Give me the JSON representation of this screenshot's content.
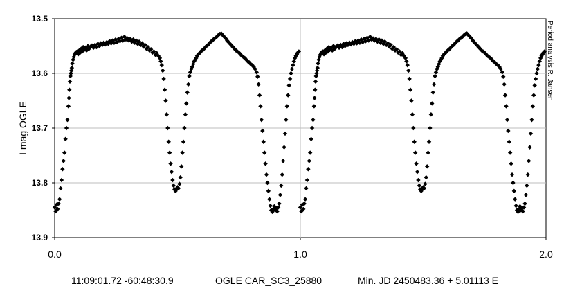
{
  "chart_data": {
    "type": "scatter",
    "ylabel": "I mag OGLE",
    "xlim": [
      0.0,
      2.0
    ],
    "ylim": [
      13.5,
      13.9
    ],
    "y_inverted": true,
    "x_ticks": [
      "0.0",
      "1.0",
      "2.0"
    ],
    "y_ticks": [
      "13.5",
      "13.6",
      "13.7",
      "13.8",
      "13.9"
    ],
    "grid": true,
    "marker": "diamond",
    "marker_color": "#000000",
    "side_label": "Period analysis  R. Jansen",
    "captions": {
      "coords": "11:09:01.72 -60:48:30.9",
      "star": "OGLE CAR_SC3_25880",
      "ephemeris": "Min. JD 2450483.36 + 5.01113 E"
    },
    "points": [
      [
        0.0,
        13.845
      ],
      [
        0.004,
        13.852
      ],
      [
        0.008,
        13.84
      ],
      [
        0.012,
        13.848
      ],
      [
        0.016,
        13.838
      ],
      [
        0.02,
        13.83
      ],
      [
        0.024,
        13.81
      ],
      [
        0.028,
        13.795
      ],
      [
        0.032,
        13.775
      ],
      [
        0.036,
        13.76
      ],
      [
        0.04,
        13.745
      ],
      [
        0.044,
        13.72
      ],
      [
        0.048,
        13.7
      ],
      [
        0.052,
        13.685
      ],
      [
        0.056,
        13.66
      ],
      [
        0.058,
        13.645
      ],
      [
        0.06,
        13.63
      ],
      [
        0.062,
        13.615
      ],
      [
        0.064,
        13.605
      ],
      [
        0.066,
        13.6
      ],
      [
        0.068,
        13.595
      ],
      [
        0.07,
        13.59
      ],
      [
        0.072,
        13.582
      ],
      [
        0.075,
        13.575
      ],
      [
        0.078,
        13.57
      ],
      [
        0.081,
        13.566
      ],
      [
        0.084,
        13.563
      ],
      [
        0.088,
        13.561
      ],
      [
        0.092,
        13.56
      ],
      [
        0.096,
        13.565
      ],
      [
        0.1,
        13.558
      ],
      [
        0.104,
        13.562
      ],
      [
        0.108,
        13.555
      ],
      [
        0.112,
        13.56
      ],
      [
        0.116,
        13.552
      ],
      [
        0.12,
        13.557
      ],
      [
        0.125,
        13.553
      ],
      [
        0.13,
        13.558
      ],
      [
        0.135,
        13.55
      ],
      [
        0.14,
        13.555
      ],
      [
        0.146,
        13.551
      ],
      [
        0.152,
        13.549
      ],
      [
        0.158,
        13.553
      ],
      [
        0.164,
        13.548
      ],
      [
        0.17,
        13.552
      ],
      [
        0.176,
        13.546
      ],
      [
        0.182,
        13.55
      ],
      [
        0.188,
        13.545
      ],
      [
        0.194,
        13.548
      ],
      [
        0.2,
        13.544
      ],
      [
        0.206,
        13.547
      ],
      [
        0.212,
        13.543
      ],
      [
        0.218,
        13.546
      ],
      [
        0.224,
        13.541
      ],
      [
        0.23,
        13.545
      ],
      [
        0.236,
        13.54
      ],
      [
        0.242,
        13.544
      ],
      [
        0.248,
        13.538
      ],
      [
        0.254,
        13.543
      ],
      [
        0.26,
        13.537
      ],
      [
        0.266,
        13.541
      ],
      [
        0.272,
        13.535
      ],
      [
        0.278,
        13.54
      ],
      [
        0.284,
        13.533
      ],
      [
        0.29,
        13.538
      ],
      [
        0.296,
        13.536
      ],
      [
        0.302,
        13.54
      ],
      [
        0.308,
        13.537
      ],
      [
        0.314,
        13.542
      ],
      [
        0.32,
        13.538
      ],
      [
        0.326,
        13.544
      ],
      [
        0.332,
        13.54
      ],
      [
        0.338,
        13.546
      ],
      [
        0.344,
        13.542
      ],
      [
        0.35,
        13.548
      ],
      [
        0.356,
        13.545
      ],
      [
        0.362,
        13.551
      ],
      [
        0.368,
        13.548
      ],
      [
        0.374,
        13.555
      ],
      [
        0.38,
        13.552
      ],
      [
        0.386,
        13.558
      ],
      [
        0.392,
        13.556
      ],
      [
        0.398,
        13.562
      ],
      [
        0.404,
        13.56
      ],
      [
        0.41,
        13.566
      ],
      [
        0.416,
        13.563
      ],
      [
        0.422,
        13.568
      ],
      [
        0.428,
        13.572
      ],
      [
        0.432,
        13.578
      ],
      [
        0.436,
        13.585
      ],
      [
        0.44,
        13.595
      ],
      [
        0.444,
        13.61
      ],
      [
        0.448,
        13.63
      ],
      [
        0.452,
        13.65
      ],
      [
        0.456,
        13.675
      ],
      [
        0.46,
        13.7
      ],
      [
        0.464,
        13.725
      ],
      [
        0.468,
        13.745
      ],
      [
        0.472,
        13.765
      ],
      [
        0.476,
        13.78
      ],
      [
        0.48,
        13.795
      ],
      [
        0.484,
        13.805
      ],
      [
        0.488,
        13.812
      ],
      [
        0.492,
        13.815
      ],
      [
        0.496,
        13.812
      ],
      [
        0.5,
        13.808
      ],
      [
        0.504,
        13.81
      ],
      [
        0.508,
        13.802
      ],
      [
        0.512,
        13.79
      ],
      [
        0.516,
        13.77
      ],
      [
        0.52,
        13.745
      ],
      [
        0.524,
        13.725
      ],
      [
        0.528,
        13.7
      ],
      [
        0.532,
        13.675
      ],
      [
        0.536,
        13.655
      ],
      [
        0.54,
        13.635
      ],
      [
        0.544,
        13.62
      ],
      [
        0.548,
        13.605
      ],
      [
        0.552,
        13.598
      ],
      [
        0.556,
        13.592
      ],
      [
        0.56,
        13.588
      ],
      [
        0.564,
        13.583
      ],
      [
        0.568,
        13.578
      ],
      [
        0.572,
        13.575
      ],
      [
        0.576,
        13.572
      ],
      [
        0.58,
        13.568
      ],
      [
        0.585,
        13.565
      ],
      [
        0.59,
        13.563
      ],
      [
        0.595,
        13.56
      ],
      [
        0.6,
        13.558
      ],
      [
        0.606,
        13.556
      ],
      [
        0.612,
        13.553
      ],
      [
        0.618,
        13.55
      ],
      [
        0.624,
        13.548
      ],
      [
        0.63,
        13.545
      ],
      [
        0.636,
        13.542
      ],
      [
        0.642,
        13.54
      ],
      [
        0.648,
        13.537
      ],
      [
        0.654,
        13.535
      ],
      [
        0.66,
        13.533
      ],
      [
        0.666,
        13.53
      ],
      [
        0.672,
        13.528
      ],
      [
        0.678,
        13.527
      ],
      [
        0.684,
        13.53
      ],
      [
        0.69,
        13.533
      ],
      [
        0.696,
        13.536
      ],
      [
        0.702,
        13.54
      ],
      [
        0.708,
        13.543
      ],
      [
        0.714,
        13.546
      ],
      [
        0.72,
        13.549
      ],
      [
        0.726,
        13.552
      ],
      [
        0.732,
        13.555
      ],
      [
        0.738,
        13.558
      ],
      [
        0.744,
        13.56
      ],
      [
        0.75,
        13.562
      ],
      [
        0.756,
        13.565
      ],
      [
        0.762,
        13.568
      ],
      [
        0.768,
        13.57
      ],
      [
        0.774,
        13.572
      ],
      [
        0.78,
        13.575
      ],
      [
        0.786,
        13.578
      ],
      [
        0.792,
        13.58
      ],
      [
        0.798,
        13.583
      ],
      [
        0.804,
        13.585
      ],
      [
        0.81,
        13.588
      ],
      [
        0.816,
        13.592
      ],
      [
        0.822,
        13.598
      ],
      [
        0.826,
        13.606
      ],
      [
        0.83,
        13.62
      ],
      [
        0.834,
        13.64
      ],
      [
        0.838,
        13.66
      ],
      [
        0.842,
        13.685
      ],
      [
        0.846,
        13.705
      ],
      [
        0.85,
        13.725
      ],
      [
        0.854,
        13.745
      ],
      [
        0.858,
        13.765
      ],
      [
        0.862,
        13.785
      ],
      [
        0.866,
        13.8
      ],
      [
        0.87,
        13.815
      ],
      [
        0.874,
        13.83
      ],
      [
        0.878,
        13.842
      ],
      [
        0.882,
        13.85
      ],
      [
        0.886,
        13.853
      ],
      [
        0.89,
        13.848
      ],
      [
        0.894,
        13.843
      ],
      [
        0.898,
        13.85
      ],
      [
        0.902,
        13.846
      ],
      [
        0.906,
        13.852
      ],
      [
        0.91,
        13.845
      ],
      [
        0.914,
        13.838
      ],
      [
        0.918,
        13.822
      ],
      [
        0.922,
        13.805
      ],
      [
        0.926,
        13.785
      ],
      [
        0.93,
        13.76
      ],
      [
        0.934,
        13.735
      ],
      [
        0.938,
        13.71
      ],
      [
        0.942,
        13.685
      ],
      [
        0.946,
        13.66
      ],
      [
        0.95,
        13.64
      ],
      [
        0.954,
        13.622
      ],
      [
        0.958,
        13.61
      ],
      [
        0.962,
        13.6
      ],
      [
        0.966,
        13.592
      ],
      [
        0.97,
        13.585
      ],
      [
        0.974,
        13.578
      ],
      [
        0.978,
        13.572
      ],
      [
        0.982,
        13.568
      ],
      [
        0.986,
        13.565
      ],
      [
        0.99,
        13.562
      ],
      [
        0.994,
        13.56
      ]
    ]
  }
}
